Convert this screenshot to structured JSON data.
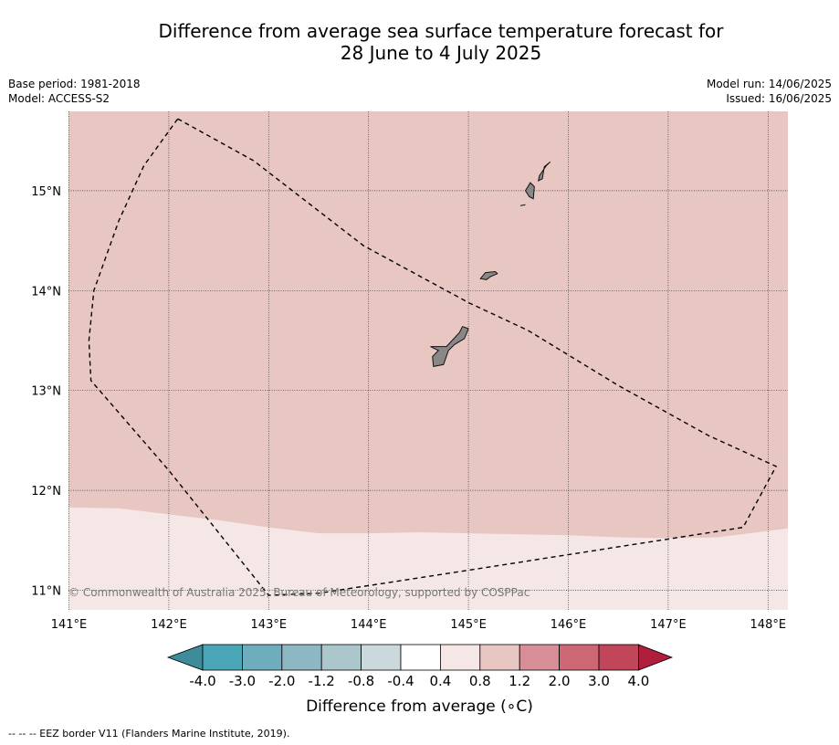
{
  "title_line1": "Difference from average sea surface temperature forecast for",
  "title_line2": "28 June to 4 July 2025",
  "base_period": "Base period: 1981-2018",
  "model": "Model: ACCESS-S2",
  "model_run": "Model run: 14/06/2025",
  "issued": "Issued: 16/06/2025",
  "copyright": "© Commonwealth of Australia 2025, Bureau of Meteorology, supported by COSPPac",
  "map": {
    "lon_range": [
      141.0,
      148.2
    ],
    "lat_range": [
      10.8,
      15.75
    ],
    "lon_ticks": [
      141,
      142,
      143,
      144,
      145,
      146,
      147,
      148
    ],
    "lon_labels": [
      "141°E",
      "142°E",
      "143°E",
      "144°E",
      "145°E",
      "146°E",
      "147°E",
      "148°E"
    ],
    "lat_ticks": [
      11,
      12,
      13,
      14,
      15
    ],
    "lat_labels": [
      "11°N",
      "12°N",
      "13°N",
      "14°N",
      "15°N"
    ],
    "anomaly_regions": [
      {
        "category": "0.8 to 1.2",
        "color": "#e8c7c3"
      },
      {
        "category": "0.4 to 0.8",
        "color": "#f5e7e5"
      }
    ],
    "boundary_lonlat": [
      [
        141.0,
        11.83
      ],
      [
        141.5,
        11.82
      ],
      [
        142.0,
        11.76
      ],
      [
        142.5,
        11.7
      ],
      [
        143.0,
        11.63
      ],
      [
        143.5,
        11.57
      ],
      [
        144.0,
        11.57
      ],
      [
        144.5,
        11.58
      ],
      [
        145.0,
        11.57
      ],
      [
        145.5,
        11.56
      ],
      [
        146.0,
        11.55
      ],
      [
        146.5,
        11.53
      ],
      [
        147.0,
        11.52
      ],
      [
        147.5,
        11.53
      ],
      [
        148.2,
        11.62
      ]
    ],
    "eez_lonlat": [
      [
        142.09,
        15.72
      ],
      [
        142.85,
        15.3
      ],
      [
        143.95,
        14.45
      ],
      [
        145.0,
        13.88
      ],
      [
        145.6,
        13.6
      ],
      [
        146.5,
        13.05
      ],
      [
        147.4,
        12.55
      ],
      [
        148.08,
        12.24
      ],
      [
        147.75,
        11.63
      ],
      [
        145.0,
        11.2
      ],
      [
        143.5,
        10.97
      ],
      [
        143.0,
        10.95
      ],
      [
        142.0,
        12.2
      ],
      [
        141.22,
        13.1
      ],
      [
        141.2,
        13.5
      ],
      [
        141.25,
        14.0
      ],
      [
        141.5,
        14.7
      ],
      [
        141.75,
        15.25
      ],
      [
        142.09,
        15.72
      ]
    ],
    "islands": [
      {
        "name": "guam",
        "lonlat": [
          [
            144.62,
            13.44
          ],
          [
            144.78,
            13.44
          ],
          [
            144.91,
            13.58
          ],
          [
            144.94,
            13.64
          ],
          [
            145.0,
            13.62
          ],
          [
            144.96,
            13.52
          ],
          [
            144.86,
            13.46
          ],
          [
            144.8,
            13.4
          ],
          [
            144.75,
            13.26
          ],
          [
            144.65,
            13.24
          ],
          [
            144.64,
            13.34
          ],
          [
            144.7,
            13.4
          ],
          [
            144.62,
            13.44
          ]
        ]
      },
      {
        "name": "rota",
        "lonlat": [
          [
            145.12,
            14.12
          ],
          [
            145.17,
            14.18
          ],
          [
            145.27,
            14.19
          ],
          [
            145.29,
            14.17
          ],
          [
            145.22,
            14.14
          ],
          [
            145.18,
            14.11
          ],
          [
            145.12,
            14.12
          ]
        ]
      },
      {
        "name": "tinian",
        "lonlat": [
          [
            145.57,
            15.0
          ],
          [
            145.62,
            15.08
          ],
          [
            145.66,
            15.04
          ],
          [
            145.65,
            14.92
          ],
          [
            145.61,
            14.94
          ],
          [
            145.57,
            15.0
          ]
        ]
      },
      {
        "name": "saipan",
        "lonlat": [
          [
            145.71,
            15.15
          ],
          [
            145.78,
            15.25
          ],
          [
            145.82,
            15.29
          ],
          [
            145.76,
            15.24
          ],
          [
            145.74,
            15.12
          ],
          [
            145.7,
            15.1
          ],
          [
            145.71,
            15.15
          ]
        ]
      },
      {
        "name": "aguijan",
        "lonlat": [
          [
            145.52,
            14.85
          ],
          [
            145.57,
            14.86
          ]
        ]
      }
    ]
  },
  "colorbar": {
    "ticks": [
      "-4.0",
      "-3.0",
      "-2.0",
      "-1.2",
      "-0.8",
      "-0.4",
      "0.4",
      "0.8",
      "1.2",
      "2.0",
      "3.0",
      "4.0"
    ],
    "colors": [
      "#4aa6b6",
      "#6eadbc",
      "#8db7c2",
      "#abc7cb",
      "#cbd9dc",
      "#ffffff",
      "#f5e7e5",
      "#e8c7c3",
      "#d78e96",
      "#cd6774",
      "#c24659"
    ],
    "under_color": "#3e8b99",
    "over_color": "#b01e3e",
    "label": "Difference from average (∘C)"
  },
  "footnote": "--  --  -- EEZ border V11 (Flanders Marine Institute, 2019)."
}
